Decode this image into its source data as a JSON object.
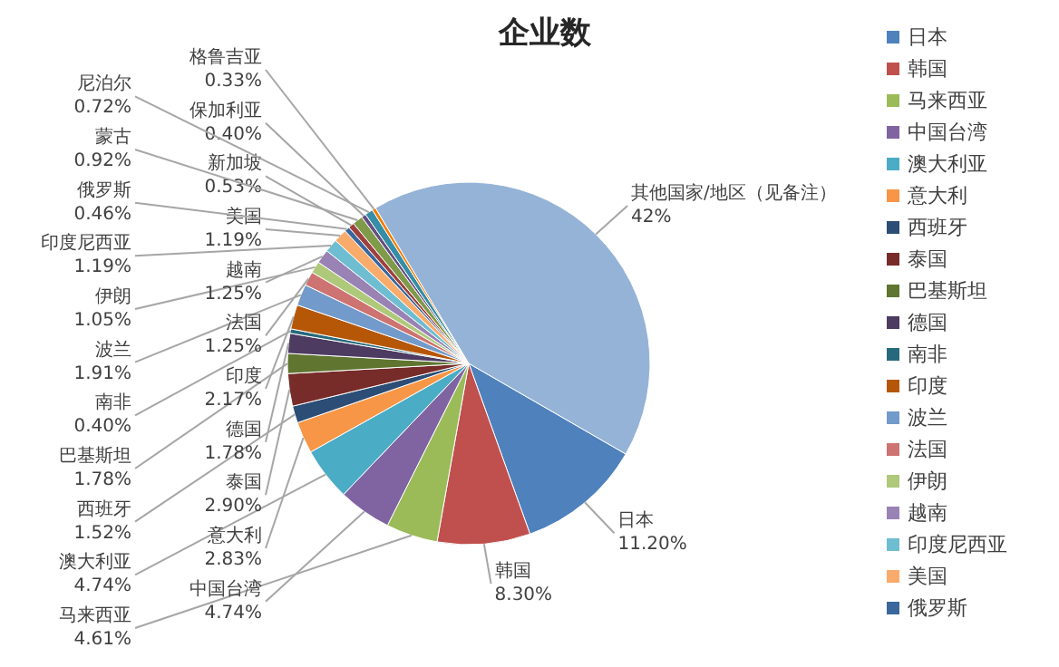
{
  "chart_data": {
    "type": "pie",
    "title": "企业数",
    "categories": [
      "日本",
      "韩国",
      "马来西亚",
      "中国台湾",
      "澳大利亚",
      "意大利",
      "西班牙",
      "泰国",
      "巴基斯坦",
      "德国",
      "南非",
      "印度",
      "波兰",
      "法国",
      "伊朗",
      "越南",
      "印度尼西亚",
      "美国",
      "俄罗斯",
      "新加坡",
      "蒙古",
      "保加利亚",
      "尼泊尔",
      "格鲁吉亚",
      "其他国家/地区（见备注）"
    ],
    "values": [
      11.2,
      8.3,
      4.61,
      4.74,
      4.74,
      2.83,
      1.52,
      2.9,
      1.78,
      1.78,
      0.4,
      2.17,
      1.91,
      1.25,
      1.05,
      1.25,
      1.19,
      1.19,
      0.46,
      0.53,
      0.92,
      0.4,
      0.72,
      0.33,
      42
    ],
    "value_labels": [
      "11.20%",
      "8.30%",
      "4.61%",
      "4.74%",
      "4.74%",
      "2.83%",
      "1.52%",
      "2.90%",
      "1.78%",
      "1.78%",
      "0.40%",
      "2.17%",
      "1.91%",
      "1.25%",
      "1.05%",
      "1.25%",
      "1.19%",
      "1.19%",
      "0.46%",
      "0.53%",
      "0.92%",
      "0.40%",
      "0.72%",
      "0.33%",
      "42%"
    ],
    "colors": [
      "#4f81bd",
      "#c0504d",
      "#9bbb59",
      "#8064a2",
      "#4bacc6",
      "#f79646",
      "#2c4d75",
      "#772c2a",
      "#5f7530",
      "#4d3b62",
      "#276a7c",
      "#b65708",
      "#729aca",
      "#cd7371",
      "#afc97a",
      "#9983b5",
      "#6fbdd1",
      "#f9ab6b",
      "#3a679c",
      "#9e413e",
      "#7f9a48",
      "#664f82",
      "#358ea6",
      "#f07f09",
      "#95b3d7"
    ],
    "legend": "right"
  }
}
